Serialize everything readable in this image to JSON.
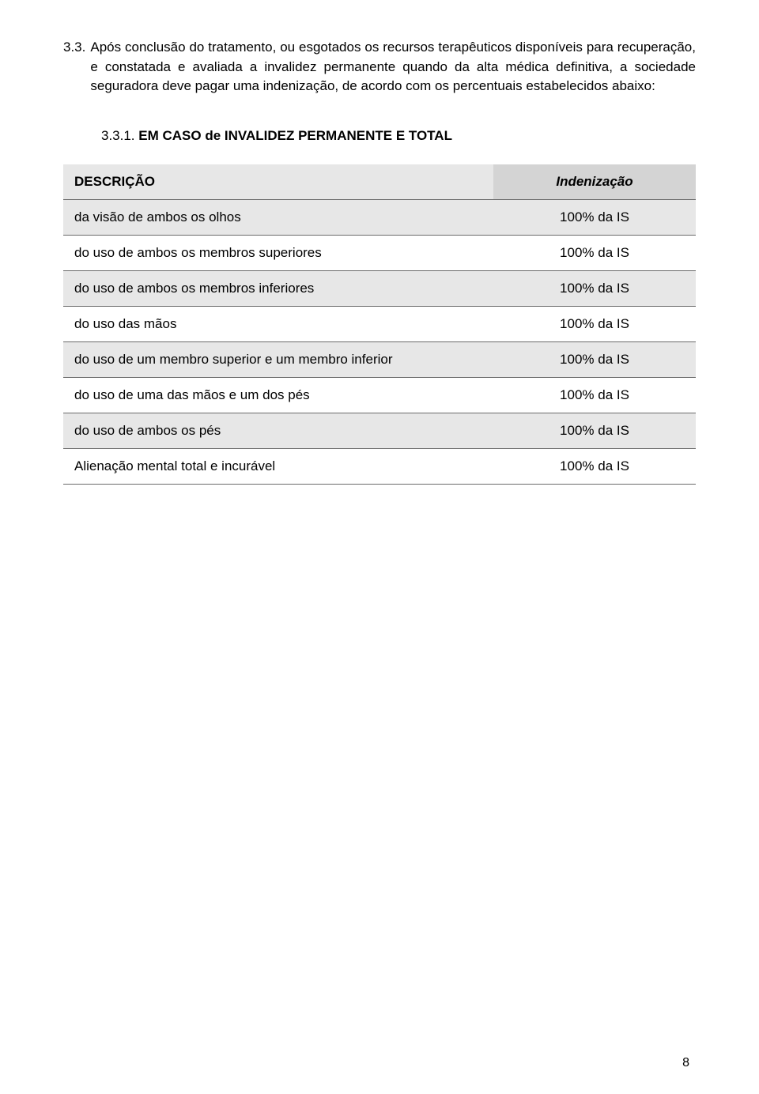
{
  "paragraph": {
    "number": "3.3.",
    "text": "Após conclusão do tratamento, ou esgotados os recursos terapêuticos disponíveis para recuperação, e constatada e avaliada a invalidez permanente quando da alta médica definitiva, a sociedade seguradora deve pagar uma indenização, de acordo com os percentuais estabelecidos abaixo:"
  },
  "section": {
    "number": "3.3.1.",
    "title": "EM CASO de INVALIDEZ PERMANENTE E TOTAL"
  },
  "table": {
    "headers": {
      "description": "DESCRIÇÃO",
      "indemnity": "Indenização"
    },
    "rows": [
      {
        "desc": "da visão de ambos os olhos",
        "val": "100% da IS",
        "shaded": true
      },
      {
        "desc": "do uso de ambos os membros superiores",
        "val": "100% da IS",
        "shaded": false
      },
      {
        "desc": "do uso de ambos os membros inferiores",
        "val": "100% da IS",
        "shaded": true
      },
      {
        "desc": "do uso das mãos",
        "val": "100% da IS",
        "shaded": false
      },
      {
        "desc": "do uso de um membro superior e um membro inferior",
        "val": "100% da IS",
        "shaded": true
      },
      {
        "desc": "do uso de uma das mãos e um dos pés",
        "val": "100% da IS",
        "shaded": false
      },
      {
        "desc": "do uso de ambos os pés",
        "val": "100% da IS",
        "shaded": true
      },
      {
        "desc": "Alienação mental total e incurável",
        "val": "100% da IS",
        "shaded": false
      }
    ]
  },
  "pageNumber": "8",
  "colors": {
    "shaded_row": "#e7e7e7",
    "header_ind_shade": "#d4d4d4",
    "border": "#6b6b6b",
    "text": "#000000",
    "background": "#ffffff"
  }
}
